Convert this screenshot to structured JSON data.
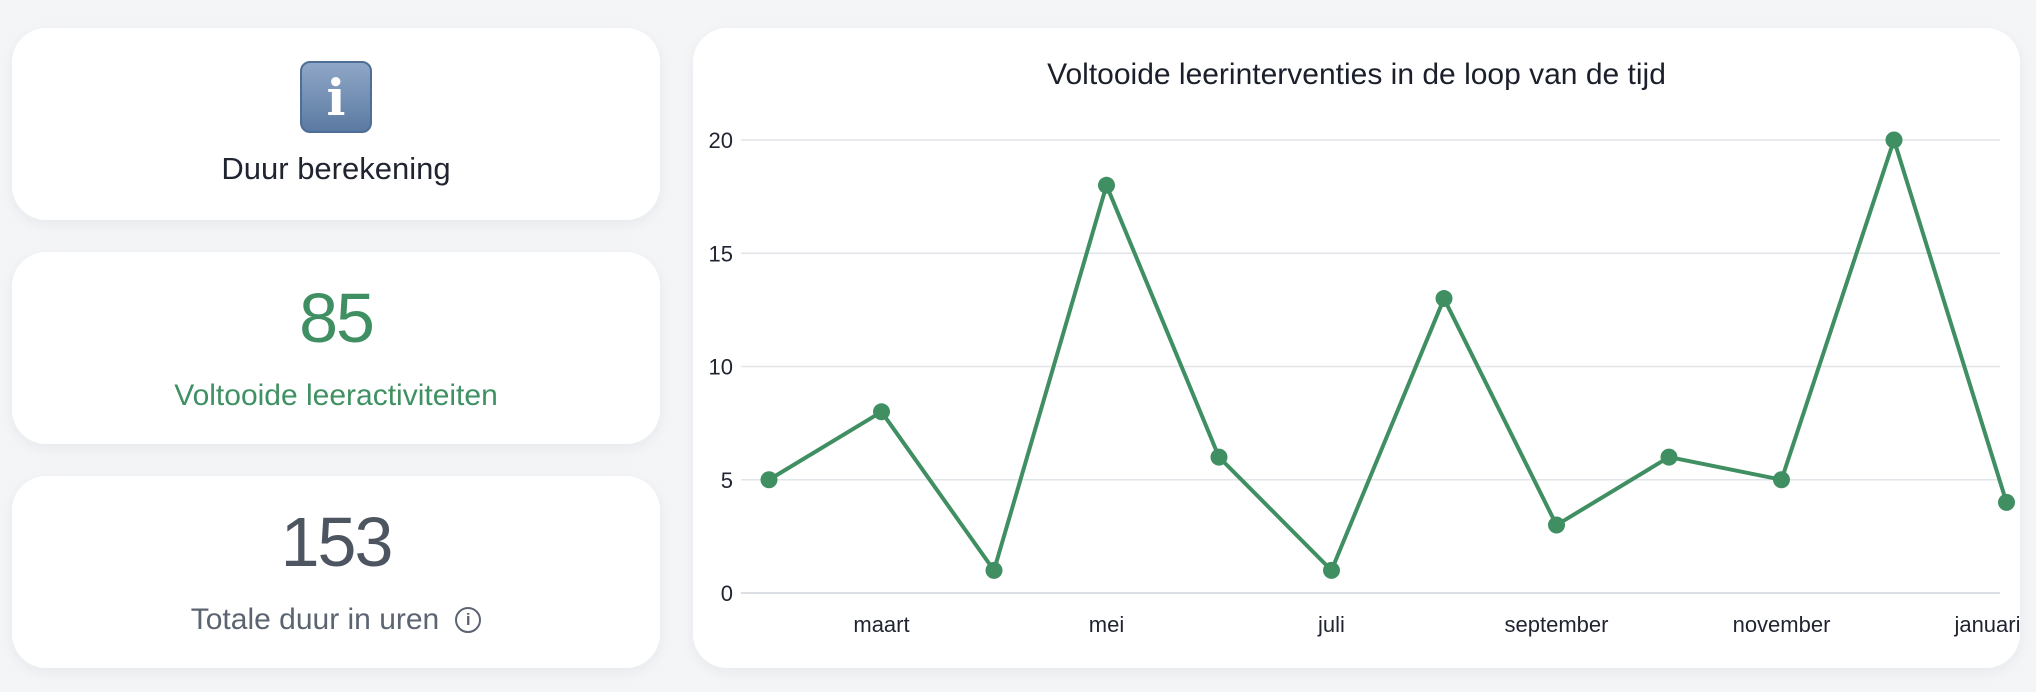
{
  "cards": {
    "info": {
      "icon": "info-icon",
      "label": "Duur berekening"
    },
    "completed": {
      "value": "85",
      "label": "Voltooide leeractiviteiten"
    },
    "duration": {
      "value": "153",
      "label": "Totale duur in uren",
      "icon": "info-circle-icon"
    }
  },
  "colors": {
    "accent": "#3f8f62",
    "grid": "#e1e4e8",
    "text": "#1f2430"
  },
  "chart_data": {
    "type": "line",
    "title": "Voltooide leerinterventies in de loop van de tijd",
    "xlabel": "",
    "ylabel": "",
    "x_labels": [
      "",
      "maart",
      "",
      "mei",
      "",
      "juli",
      "",
      "september",
      "",
      "november",
      "",
      "januari"
    ],
    "series": [
      {
        "values": [
          5,
          8,
          1,
          18,
          6,
          1,
          13,
          3,
          6,
          5,
          20,
          4
        ]
      }
    ],
    "ylim": [
      0,
      20
    ],
    "yticks": [
      0,
      5,
      10,
      15,
      20
    ],
    "grid": true
  }
}
